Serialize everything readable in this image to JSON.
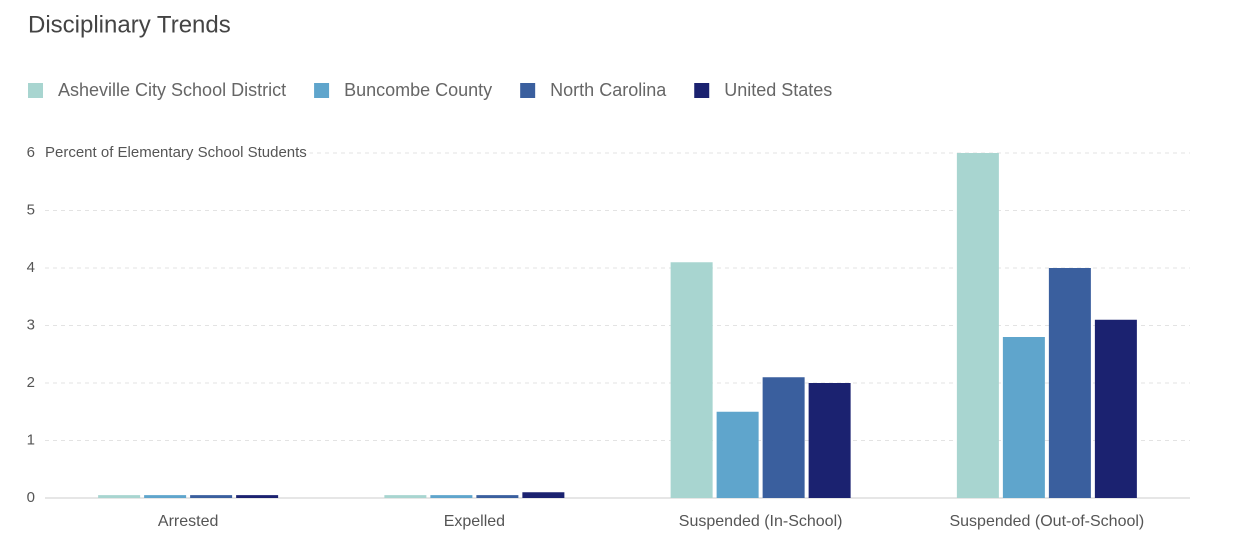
{
  "chart_data": {
    "type": "bar",
    "title": "Disciplinary Trends",
    "y_label": "Percent of Elementary School Students",
    "categories": [
      "Arrested",
      "Expelled",
      "Suspended (In-School)",
      "Suspended (Out-of-School)"
    ],
    "series": [
      {
        "name": "Asheville City School District",
        "color": "#a8d5d0",
        "values": [
          0.05,
          0.05,
          4.1,
          6.0
        ]
      },
      {
        "name": "Buncombe County",
        "color": "#5fa5cc",
        "values": [
          0.05,
          0.05,
          1.5,
          2.8
        ]
      },
      {
        "name": "North Carolina",
        "color": "#3a5f9e",
        "values": [
          0.05,
          0.05,
          2.1,
          4.0
        ]
      },
      {
        "name": "United States",
        "color": "#1b2270",
        "values": [
          0.05,
          0.1,
          2.0,
          3.1
        ]
      }
    ],
    "ylim": [
      0,
      6
    ],
    "yticks": [
      0,
      1,
      2,
      3,
      4,
      5,
      6
    ],
    "grid": true,
    "legend": "top-left"
  }
}
